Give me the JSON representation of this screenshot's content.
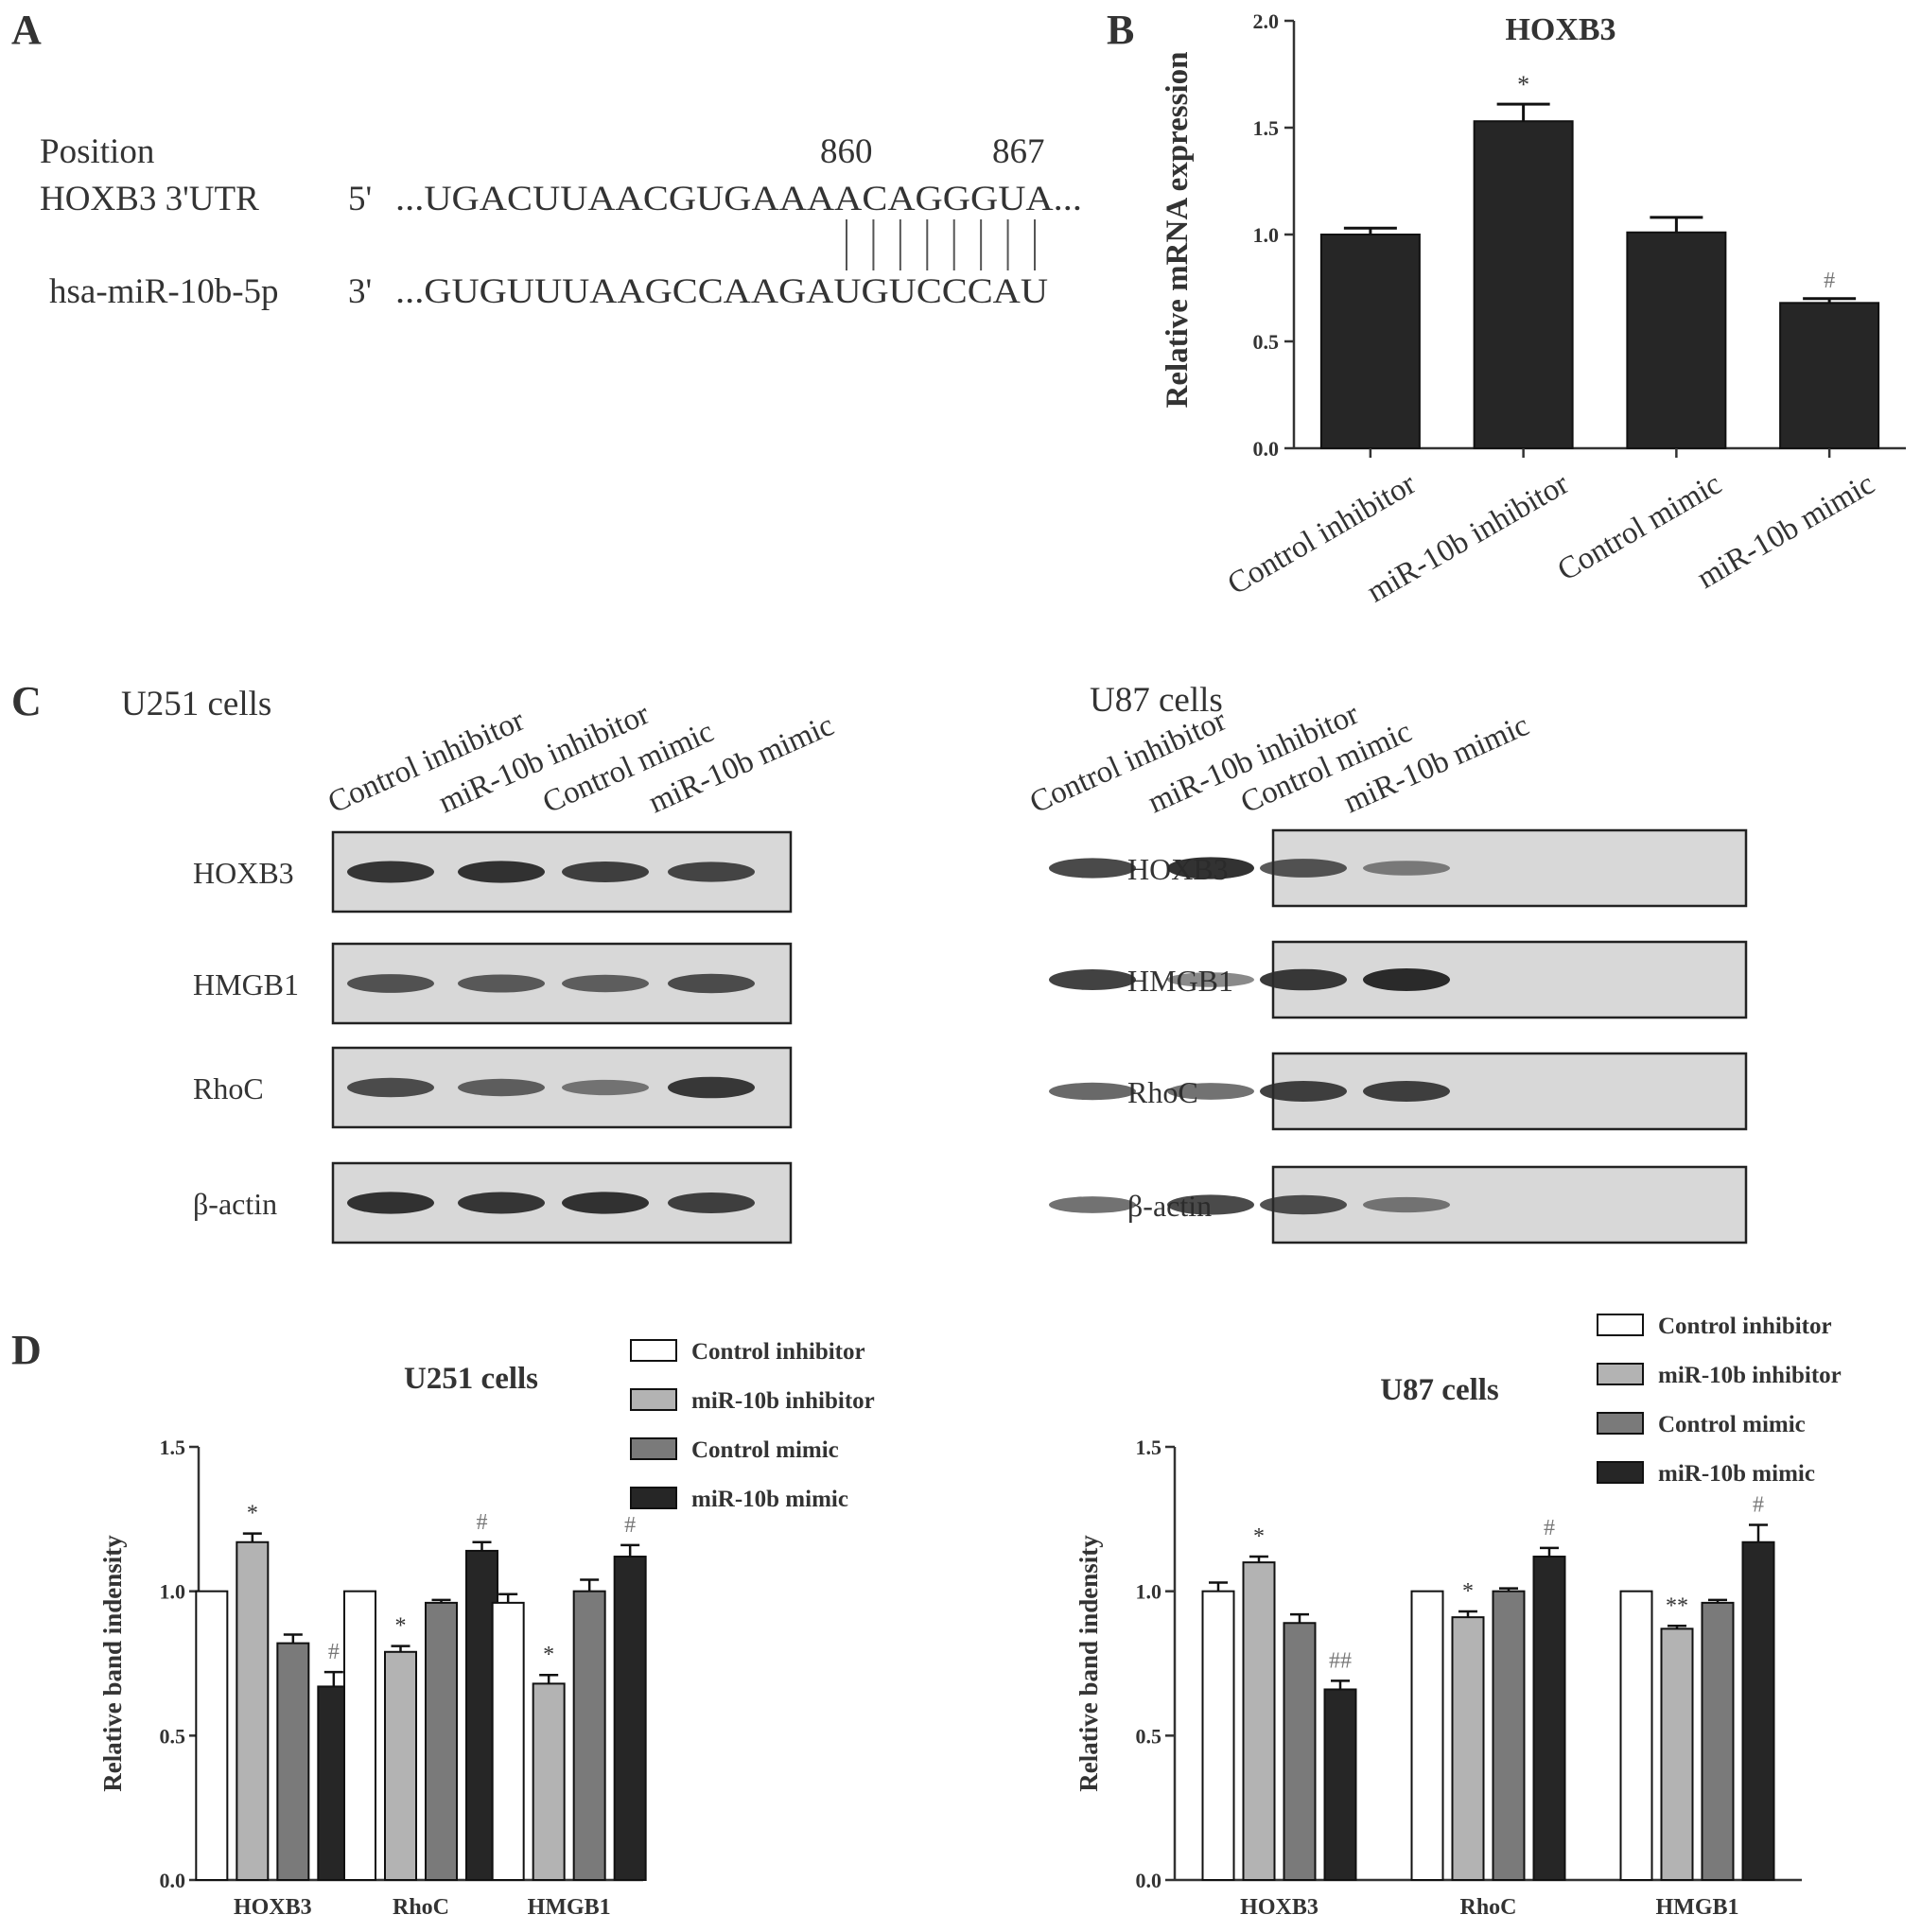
{
  "panel_a": {
    "label": "A",
    "position_label": "Position",
    "pos1": "860",
    "pos2": "867",
    "seq1_name": "HOXB3 3'UTR",
    "seq1_end": "5'",
    "seq1": "...UGACUUAACGUGAAAACAGGGUA...",
    "seq2_name": "hsa-miR-10b-5p",
    "seq2_end": "3'",
    "seq2": "...GUGUUUAAGCCAAGAUGUCCCAU",
    "pairing_lines": 8
  },
  "panel_labels": {
    "b": "B",
    "c": "C",
    "d": "D"
  },
  "panel_c": {
    "left": {
      "title": "U251 cells",
      "lanes": [
        "Control inhibitor",
        "miR-10b inhibitor",
        "Control mimic",
        "miR-10b mimic"
      ],
      "blots": [
        {
          "name": "HOXB3",
          "intensity": [
            0.92,
            0.95,
            0.85,
            0.8
          ]
        },
        {
          "name": "HMGB1",
          "intensity": [
            0.7,
            0.65,
            0.6,
            0.75
          ]
        },
        {
          "name": "RhoC",
          "intensity": [
            0.75,
            0.6,
            0.45,
            0.9
          ]
        },
        {
          "name": "β-actin",
          "intensity": [
            0.95,
            0.92,
            0.95,
            0.85
          ]
        }
      ]
    },
    "right": {
      "title": "U87 cells",
      "lanes": [
        "Control inhibitor",
        "miR-10b inhibitor",
        "Control mimic",
        "miR-10b mimic"
      ],
      "blots": [
        {
          "name": "HOXB3",
          "intensity": [
            0.8,
            0.95,
            0.7,
            0.4
          ]
        },
        {
          "name": "HMGB1",
          "intensity": [
            0.85,
            0.4,
            0.9,
            1.0
          ]
        },
        {
          "name": "RhoC",
          "intensity": [
            0.6,
            0.55,
            0.85,
            0.85
          ]
        },
        {
          "name": "β-actin",
          "intensity": [
            0.55,
            0.8,
            0.75,
            0.45
          ]
        }
      ]
    }
  },
  "colors": {
    "control_inhibitor": "#ffffff",
    "mir10b_inhibitor": "#b3b3b3",
    "control_mimic": "#7a7a7a",
    "mir10b_mimic": "#262626",
    "panel_b_bar": "#262626",
    "blot_bg": "#d8d8d8",
    "band": "#2a2a2a",
    "sig_grey": "#777777"
  },
  "chart_data": [
    {
      "type": "bar",
      "panel": "B",
      "title": "HOXB3",
      "ylabel": "Relative mRNA expression",
      "xlabel": "",
      "ylim": [
        0,
        2.0
      ],
      "yticks": [
        "0.0",
        "0.5",
        "1.0",
        "1.5",
        "2.0"
      ],
      "categories": [
        "Control inhibitor",
        "miR-10b inhibitor",
        "Control mimic",
        "miR-10b mimic"
      ],
      "values": [
        1.0,
        1.53,
        1.01,
        0.68
      ],
      "errors": [
        0.03,
        0.08,
        0.07,
        0.02
      ],
      "annotations": [
        "",
        "*",
        "",
        "#"
      ]
    },
    {
      "type": "bar",
      "panel": "D",
      "title": "U251 cells",
      "ylabel": "Relative band indensity",
      "xlabel": "",
      "ylim": [
        0,
        1.5
      ],
      "yticks": [
        "0.0",
        "0.5",
        "1.0",
        "1.5"
      ],
      "categories": [
        "HOXB3",
        "RhoC",
        "HMGB1"
      ],
      "legend": [
        "Control inhibitor",
        "miR-10b inhibitor",
        "Control mimic",
        "miR-10b mimic"
      ],
      "series": [
        {
          "name": "Control inhibitor",
          "values": [
            1.0,
            1.0,
            0.96
          ],
          "errors": [
            0,
            0,
            0.03
          ],
          "annotations": [
            "",
            "",
            ""
          ]
        },
        {
          "name": "miR-10b inhibitor",
          "values": [
            1.17,
            0.79,
            0.68
          ],
          "errors": [
            0.03,
            0.02,
            0.03
          ],
          "annotations": [
            "*",
            "*",
            "*"
          ]
        },
        {
          "name": "Control mimic",
          "values": [
            0.82,
            0.96,
            1.0
          ],
          "errors": [
            0.03,
            0.01,
            0.04
          ],
          "annotations": [
            "",
            "",
            ""
          ]
        },
        {
          "name": "miR-10b mimic",
          "values": [
            0.67,
            1.14,
            1.12
          ],
          "errors": [
            0.05,
            0.03,
            0.04
          ],
          "annotations": [
            "#",
            "#",
            "#"
          ]
        }
      ]
    },
    {
      "type": "bar",
      "panel": "D",
      "title": "U87 cells",
      "ylabel": "Relative band indensity",
      "xlabel": "",
      "ylim": [
        0,
        1.5
      ],
      "yticks": [
        "0.0",
        "0.5",
        "1.0",
        "1.5"
      ],
      "categories": [
        "HOXB3",
        "RhoC",
        "HMGB1"
      ],
      "legend": [
        "Control inhibitor",
        "miR-10b inhibitor",
        "Control mimic",
        "miR-10b mimic"
      ],
      "series": [
        {
          "name": "Control inhibitor",
          "values": [
            1.0,
            1.0,
            1.0
          ],
          "errors": [
            0.03,
            0,
            0
          ],
          "annotations": [
            "",
            "",
            ""
          ]
        },
        {
          "name": "miR-10b inhibitor",
          "values": [
            1.1,
            0.91,
            0.87
          ],
          "errors": [
            0.02,
            0.02,
            0.01
          ],
          "annotations": [
            "*",
            "*",
            "**"
          ]
        },
        {
          "name": "Control mimic",
          "values": [
            0.89,
            1.0,
            0.96
          ],
          "errors": [
            0.03,
            0.01,
            0.01
          ],
          "annotations": [
            "",
            "",
            ""
          ]
        },
        {
          "name": "miR-10b mimic",
          "values": [
            0.66,
            1.12,
            1.17
          ],
          "errors": [
            0.03,
            0.03,
            0.06
          ],
          "annotations": [
            "##",
            "#",
            "#"
          ]
        }
      ]
    }
  ]
}
